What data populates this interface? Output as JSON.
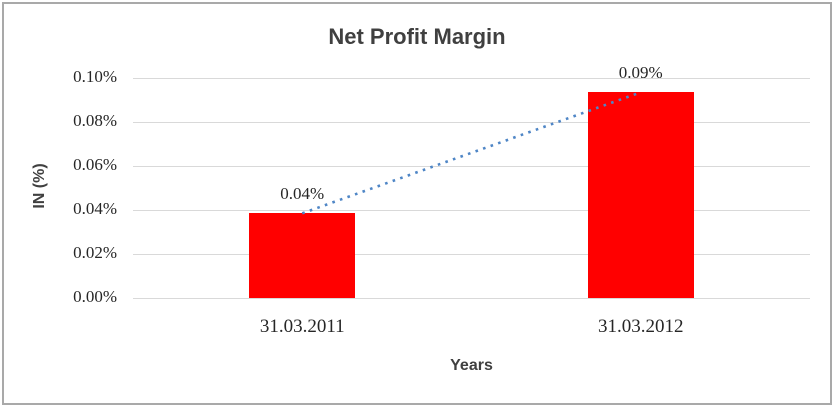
{
  "window": {
    "background": "#ffffff",
    "border_color": "#a9a9a9"
  },
  "chart_data": {
    "type": "bar",
    "title": "Net Profit Margin",
    "xlabel": "Years",
    "ylabel": "IN (%)",
    "categories": [
      "31.03.2011",
      "31.03.2012"
    ],
    "series": [
      {
        "name": "Net Profit Margin",
        "values": [
          0.0385,
          0.0935
        ],
        "data_labels": [
          "0.04%",
          "0.09%"
        ],
        "color": "#ff0000"
      }
    ],
    "trendline": {
      "type": "linear",
      "style": "dotted",
      "color": "#4f86c6",
      "connects": [
        "31.03.2011",
        "31.03.2012"
      ]
    },
    "yticks": [
      "0.00%",
      "0.02%",
      "0.04%",
      "0.06%",
      "0.08%",
      "0.10%"
    ],
    "ylim": [
      0,
      0.1
    ],
    "grid": true,
    "legend": "none",
    "colors": {
      "bar": "#ff0000",
      "trendline": "#4f86c6",
      "gridline": "#d9d9d9",
      "title_text": "#404040",
      "axis_text": "#262626"
    }
  }
}
